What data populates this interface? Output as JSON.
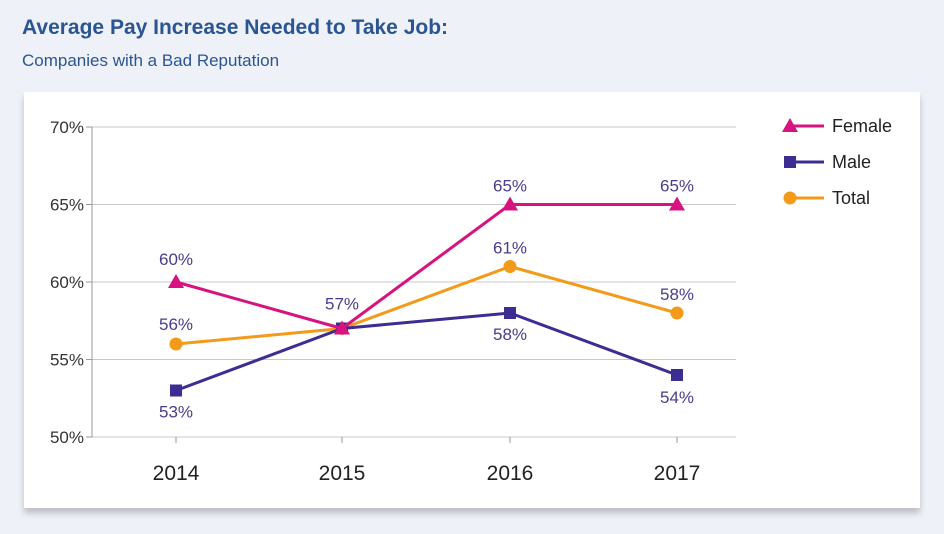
{
  "header": {
    "title": "Average Pay Increase Needed to Take Job:",
    "subtitle": "Companies with a Bad Reputation"
  },
  "chart_data": {
    "type": "line",
    "title": "Average Pay Increase Needed to Take Job:",
    "subtitle": "Companies with a Bad Reputation",
    "xlabel": "",
    "ylabel": "",
    "categories": [
      "2014",
      "2015",
      "2016",
      "2017"
    ],
    "ylim": [
      50,
      70
    ],
    "yticks": [
      50,
      55,
      60,
      65,
      70
    ],
    "ytick_labels": [
      "50%",
      "55%",
      "60%",
      "65%",
      "70%"
    ],
    "grid": true,
    "legend": "top-right",
    "series": [
      {
        "name": "Female",
        "values": [
          60,
          57,
          65,
          65
        ],
        "labels": [
          "60%",
          "",
          "65%",
          "65%"
        ],
        "color": "#d6137f",
        "marker": "triangle"
      },
      {
        "name": "Male",
        "values": [
          53,
          57,
          58,
          54
        ],
        "labels": [
          "53%",
          "",
          "58%",
          "54%"
        ],
        "color": "#3c2d92",
        "marker": "square"
      },
      {
        "name": "Total",
        "values": [
          56,
          57,
          61,
          58
        ],
        "labels": [
          "56%",
          "57%",
          "61%",
          "58%"
        ],
        "color": "#f39a1b",
        "marker": "circle"
      }
    ],
    "label_color": "#4a3c8c"
  }
}
